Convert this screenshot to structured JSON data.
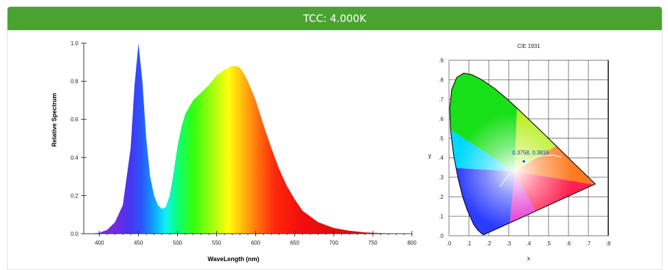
{
  "header": {
    "title": "TCC: 4.000K",
    "bg_color": "#4aa330"
  },
  "chart_data": [
    {
      "type": "area",
      "title": "",
      "xlabel": "WaveLength (nm)",
      "ylabel": "Relative Spectrum",
      "xlim": [
        380,
        800
      ],
      "ylim": [
        0,
        1.0
      ],
      "xticks": [
        400,
        450,
        500,
        550,
        600,
        650,
        700,
        750,
        800
      ],
      "yticks": [
        0.0,
        0.2,
        0.4,
        0.6,
        0.8,
        1.0
      ],
      "x": [
        390,
        400,
        410,
        420,
        430,
        440,
        445,
        450,
        455,
        460,
        465,
        470,
        475,
        480,
        485,
        490,
        495,
        500,
        505,
        510,
        520,
        530,
        540,
        550,
        560,
        570,
        575,
        580,
        585,
        590,
        600,
        610,
        620,
        630,
        640,
        650,
        660,
        680,
        700,
        720,
        740,
        760,
        780
      ],
      "y": [
        0.0,
        0.005,
        0.02,
        0.06,
        0.15,
        0.45,
        0.78,
        1.0,
        0.8,
        0.5,
        0.3,
        0.2,
        0.15,
        0.13,
        0.14,
        0.2,
        0.32,
        0.46,
        0.56,
        0.63,
        0.7,
        0.74,
        0.78,
        0.83,
        0.86,
        0.88,
        0.88,
        0.87,
        0.84,
        0.8,
        0.7,
        0.57,
        0.45,
        0.34,
        0.25,
        0.18,
        0.12,
        0.06,
        0.03,
        0.015,
        0.007,
        0.003,
        0.001
      ]
    },
    {
      "type": "scatter",
      "title": "CIE 1931",
      "xlabel": "x",
      "ylabel": "y",
      "xlim": [
        0,
        0.8
      ],
      "ylim": [
        0,
        0.9
      ],
      "xtick_labels": [
        ".0",
        ".1",
        ".2",
        ".3",
        ".4",
        ".5",
        ".6",
        ".7",
        ".8"
      ],
      "ytick_labels": [
        ".0",
        ".1",
        ".2",
        ".3",
        ".4",
        ".5",
        ".6",
        ".7",
        ".8",
        ".9"
      ],
      "point_label": "0.3758, 0.3815",
      "point": [
        0.3758,
        0.3815
      ],
      "locus": [
        [
          0.1741,
          0.005
        ],
        [
          0.1666,
          0.0089
        ],
        [
          0.144,
          0.0297
        ],
        [
          0.1241,
          0.0578
        ],
        [
          0.0913,
          0.1327
        ],
        [
          0.0687,
          0.2007
        ],
        [
          0.0454,
          0.295
        ],
        [
          0.0235,
          0.4127
        ],
        [
          0.0082,
          0.5384
        ],
        [
          0.0039,
          0.6548
        ],
        [
          0.0139,
          0.7502
        ],
        [
          0.0389,
          0.812
        ],
        [
          0.0743,
          0.8338
        ],
        [
          0.1142,
          0.8262
        ],
        [
          0.1547,
          0.8059
        ],
        [
          0.1929,
          0.7816
        ],
        [
          0.2296,
          0.7543
        ],
        [
          0.2658,
          0.7243
        ],
        [
          0.3016,
          0.6923
        ],
        [
          0.3373,
          0.6589
        ],
        [
          0.3731,
          0.6245
        ],
        [
          0.4087,
          0.5896
        ],
        [
          0.4441,
          0.5547
        ],
        [
          0.4788,
          0.5202
        ],
        [
          0.5125,
          0.4866
        ],
        [
          0.5448,
          0.4544
        ],
        [
          0.5752,
          0.4242
        ],
        [
          0.6029,
          0.3965
        ],
        [
          0.627,
          0.3725
        ],
        [
          0.6482,
          0.3514
        ],
        [
          0.6658,
          0.334
        ],
        [
          0.6801,
          0.3197
        ],
        [
          0.6915,
          0.3083
        ],
        [
          0.7006,
          0.2993
        ],
        [
          0.714,
          0.2859
        ],
        [
          0.7347,
          0.2653
        ]
      ],
      "planckian": [
        [
          0.2565,
          0.2525
        ],
        [
          0.2806,
          0.2883
        ],
        [
          0.3135,
          0.3237
        ],
        [
          0.3447,
          0.3516
        ],
        [
          0.3805,
          0.3768
        ],
        [
          0.4369,
          0.4041
        ],
        [
          0.4813,
          0.4129
        ],
        [
          0.5266,
          0.4133
        ],
        [
          0.5648,
          0.4025
        ]
      ]
    }
  ]
}
